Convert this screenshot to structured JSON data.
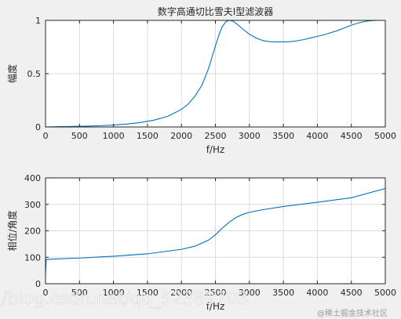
{
  "chart_data": [
    {
      "type": "line",
      "title": "数字高通切比雪夫I型滤波器",
      "xlabel": "f/Hz",
      "ylabel": "幅度",
      "xlim": [
        0,
        5000
      ],
      "ylim": [
        0,
        1
      ],
      "xticks": [
        0,
        500,
        1000,
        1500,
        2000,
        2500,
        3000,
        3500,
        4000,
        4500,
        5000
      ],
      "yticks": [
        0,
        0.5,
        1
      ],
      "ytick_labels": [
        "0",
        "0.5",
        "1"
      ],
      "grid": true,
      "color": "#0072bd",
      "x": [
        0,
        200,
        400,
        600,
        800,
        1000,
        1200,
        1400,
        1600,
        1800,
        2000,
        2100,
        2200,
        2300,
        2400,
        2500,
        2550,
        2600,
        2650,
        2700,
        2750,
        2800,
        2900,
        3000,
        3100,
        3200,
        3300,
        3400,
        3500,
        3600,
        3700,
        3800,
        3900,
        4000,
        4100,
        4200,
        4300,
        4400,
        4500,
        4600,
        4700,
        4800,
        4900,
        5000
      ],
      "y": [
        0,
        0.003,
        0.005,
        0.008,
        0.012,
        0.018,
        0.028,
        0.042,
        0.065,
        0.1,
        0.165,
        0.215,
        0.29,
        0.39,
        0.55,
        0.76,
        0.86,
        0.94,
        0.985,
        1.0,
        0.995,
        0.975,
        0.92,
        0.87,
        0.835,
        0.81,
        0.8,
        0.798,
        0.798,
        0.8,
        0.808,
        0.82,
        0.835,
        0.85,
        0.865,
        0.885,
        0.905,
        0.93,
        0.955,
        0.975,
        0.99,
        0.998,
        1.0,
        1.0
      ]
    },
    {
      "type": "line",
      "title": "",
      "xlabel": "f/Hz",
      "ylabel": "相位/角度",
      "xlim": [
        0,
        5000
      ],
      "ylim": [
        0,
        400
      ],
      "xticks": [
        0,
        500,
        1000,
        1500,
        2000,
        2500,
        3000,
        3500,
        4000,
        4500,
        5000
      ],
      "yticks": [
        0,
        100,
        200,
        300,
        400
      ],
      "ytick_labels": [
        "0",
        "100",
        "200",
        "300",
        "400"
      ],
      "grid": true,
      "color": "#0072bd",
      "x": [
        0,
        10,
        500,
        1000,
        1500,
        2000,
        2200,
        2400,
        2500,
        2600,
        2700,
        2800,
        2900,
        3000,
        3200,
        3500,
        4000,
        4500,
        5000
      ],
      "y": [
        35,
        92,
        97,
        104,
        113,
        130,
        142,
        165,
        185,
        210,
        232,
        250,
        262,
        270,
        280,
        292,
        308,
        325,
        360
      ]
    }
  ],
  "watermark": {
    "url_text": "/blog.csdn.net/qq_52389703",
    "site_text": "@稀土掘金技术社区"
  }
}
